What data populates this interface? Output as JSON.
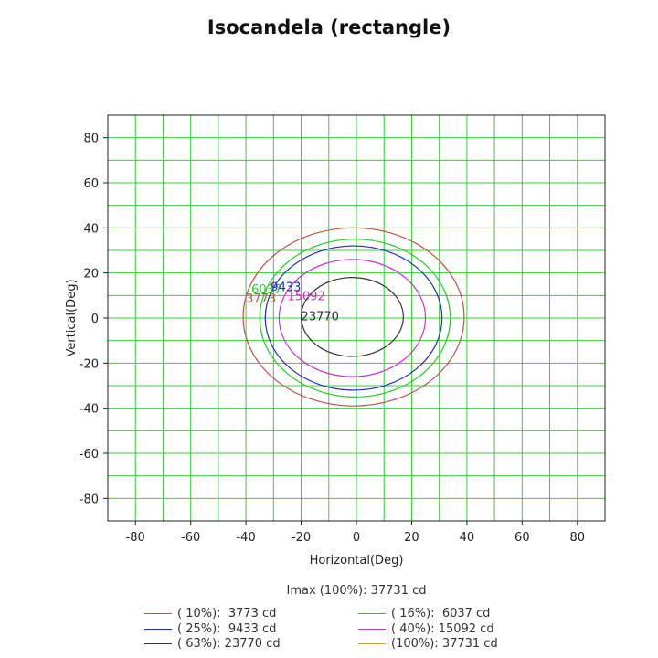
{
  "chart_data": {
    "type": "contour",
    "title": "Isocandela (rectangle)",
    "xlabel": "Horizontal(Deg)",
    "ylabel": "Vertical(Deg)",
    "xlim": [
      -90,
      90
    ],
    "ylim": [
      -90,
      90
    ],
    "xticks": [
      -80,
      -60,
      -40,
      -20,
      0,
      20,
      40,
      60,
      80
    ],
    "yticks": [
      -80,
      -60,
      -40,
      -20,
      0,
      20,
      40,
      60,
      80
    ],
    "grid": true,
    "imax_label": "Imax (100%): 37731 cd",
    "series": [
      {
        "name": "( 10%):  3773 cd",
        "value": 3773,
        "label": "3773",
        "color": "#c0504d",
        "x_range": [
          -41,
          39
        ],
        "y_range": [
          -39,
          40
        ],
        "label_pos": [
          -40,
          9
        ]
      },
      {
        "name": "( 16%):  6037 cd",
        "value": 6037,
        "label": "6037",
        "color": "#22cc22",
        "x_range": [
          -35,
          34
        ],
        "y_range": [
          -35,
          35
        ],
        "label_pos": [
          -38,
          13
        ]
      },
      {
        "name": "( 25%):  9433 cd",
        "value": 9433,
        "label": "9433",
        "color": "#1f2fb8",
        "x_range": [
          -33,
          31
        ],
        "y_range": [
          -32,
          32
        ],
        "label_pos": [
          -31,
          14
        ]
      },
      {
        "name": "( 40%): 15092 cd",
        "value": 15092,
        "label": "15092",
        "color": "#cc33cc",
        "x_range": [
          -28,
          25
        ],
        "y_range": [
          -26,
          26
        ],
        "label_pos": [
          -25,
          10
        ]
      },
      {
        "name": "( 63%): 23770 cd",
        "value": 23770,
        "label": "23770",
        "color": "#333333",
        "x_range": [
          -20,
          17
        ],
        "y_range": [
          -17,
          18
        ],
        "label_pos": [
          -20,
          1
        ]
      },
      {
        "name": "(100%): 37731 cd",
        "value": 37731,
        "label": "",
        "color": "#b8a830",
        "x_range": null,
        "y_range": null,
        "label_pos": null
      }
    ],
    "legend_position": "bottom"
  }
}
